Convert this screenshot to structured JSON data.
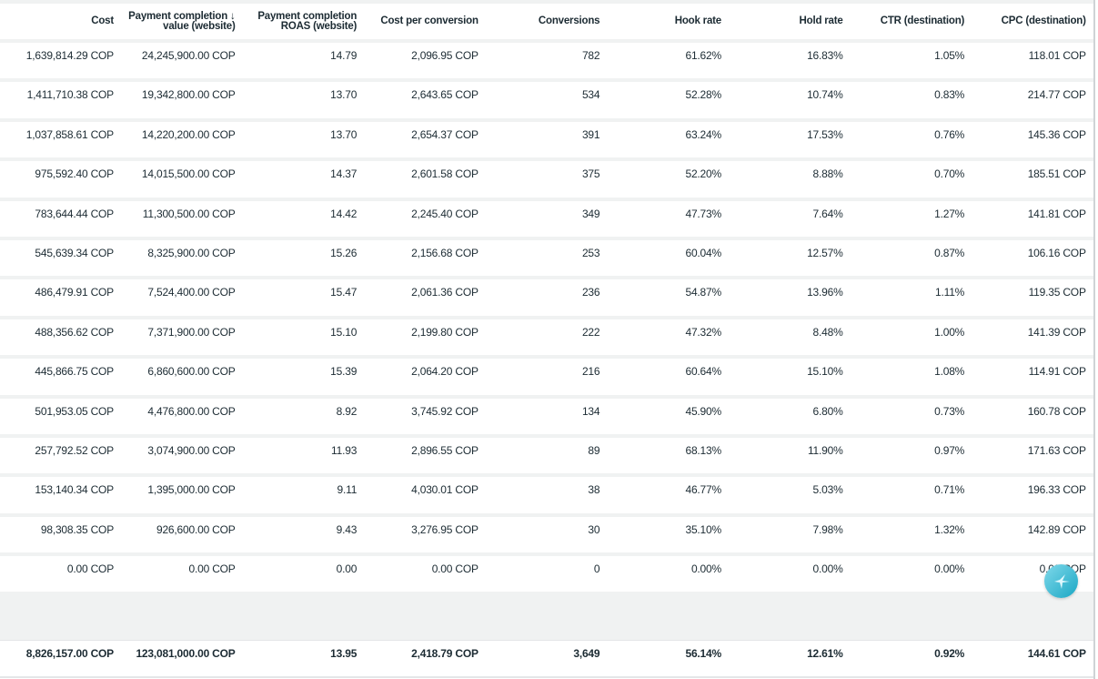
{
  "headers": [
    "Cost",
    "Payment completion ↓ value (website)",
    "Payment completion ROAS (website)",
    "Cost per conversion",
    "Conversions",
    "Hook rate",
    "Hold rate",
    "CTR (destination)",
    "CPC (destination)"
  ],
  "rows": [
    [
      "1,639,814.29 COP",
      "24,245,900.00 COP",
      "14.79",
      "2,096.95 COP",
      "782",
      "61.62%",
      "16.83%",
      "1.05%",
      "118.01 COP"
    ],
    [
      "1,411,710.38 COP",
      "19,342,800.00 COP",
      "13.70",
      "2,643.65 COP",
      "534",
      "52.28%",
      "10.74%",
      "0.83%",
      "214.77 COP"
    ],
    [
      "1,037,858.61 COP",
      "14,220,200.00 COP",
      "13.70",
      "2,654.37 COP",
      "391",
      "63.24%",
      "17.53%",
      "0.76%",
      "145.36 COP"
    ],
    [
      "975,592.40 COP",
      "14,015,500.00 COP",
      "14.37",
      "2,601.58 COP",
      "375",
      "52.20%",
      "8.88%",
      "0.70%",
      "185.51 COP"
    ],
    [
      "783,644.44 COP",
      "11,300,500.00 COP",
      "14.42",
      "2,245.40 COP",
      "349",
      "47.73%",
      "7.64%",
      "1.27%",
      "141.81 COP"
    ],
    [
      "545,639.34 COP",
      "8,325,900.00 COP",
      "15.26",
      "2,156.68 COP",
      "253",
      "60.04%",
      "12.57%",
      "0.87%",
      "106.16 COP"
    ],
    [
      "486,479.91 COP",
      "7,524,400.00 COP",
      "15.47",
      "2,061.36 COP",
      "236",
      "54.87%",
      "13.96%",
      "1.11%",
      "119.35 COP"
    ],
    [
      "488,356.62 COP",
      "7,371,900.00 COP",
      "15.10",
      "2,199.80 COP",
      "222",
      "47.32%",
      "8.48%",
      "1.00%",
      "141.39 COP"
    ],
    [
      "445,866.75 COP",
      "6,860,600.00 COP",
      "15.39",
      "2,064.20 COP",
      "216",
      "60.64%",
      "15.10%",
      "1.08%",
      "114.91 COP"
    ],
    [
      "501,953.05 COP",
      "4,476,800.00 COP",
      "8.92",
      "3,745.92 COP",
      "134",
      "45.90%",
      "6.80%",
      "0.73%",
      "160.78 COP"
    ],
    [
      "257,792.52 COP",
      "3,074,900.00 COP",
      "11.93",
      "2,896.55 COP",
      "89",
      "68.13%",
      "11.90%",
      "0.97%",
      "171.63 COP"
    ],
    [
      "153,140.34 COP",
      "1,395,000.00 COP",
      "9.11",
      "4,030.01 COP",
      "38",
      "46.77%",
      "5.03%",
      "0.71%",
      "196.33 COP"
    ],
    [
      "98,308.35 COP",
      "926,600.00 COP",
      "9.43",
      "3,276.95 COP",
      "30",
      "35.10%",
      "7.98%",
      "1.32%",
      "142.89 COP"
    ],
    [
      "0.00 COP",
      "0.00 COP",
      "0.00",
      "0.00 COP",
      "0",
      "0.00%",
      "0.00%",
      "0.00%",
      "0.00 COP"
    ]
  ],
  "totals": [
    "8,826,157.00 COP",
    "123,081,000.00 COP",
    "13.95",
    "2,418.79 COP",
    "3,649",
    "56.14%",
    "12.61%",
    "0.92%",
    "144.61 COP"
  ],
  "fab_icon": "sparkle-star-icon"
}
